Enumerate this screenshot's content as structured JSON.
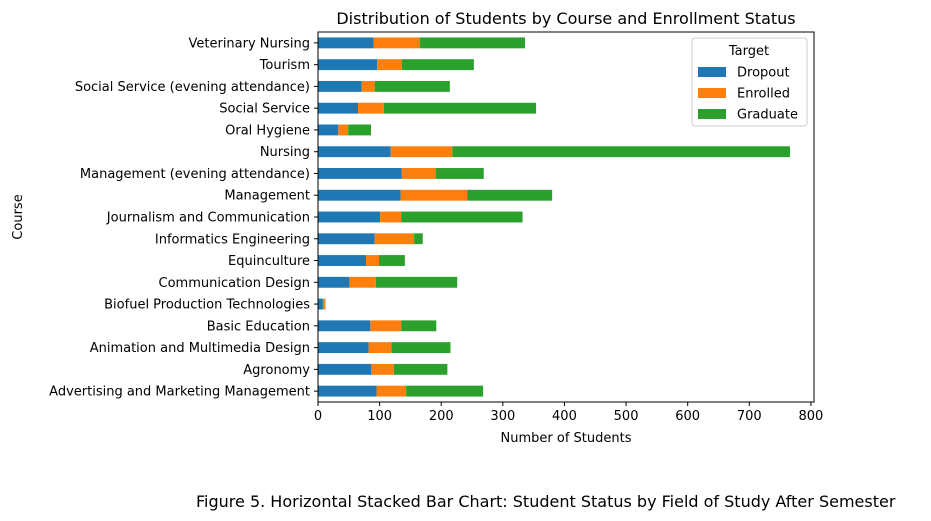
{
  "chart_data": {
    "type": "bar",
    "orientation": "horizontal",
    "stacked": true,
    "title": "Distribution of Students by Course and Enrollment Status",
    "xlabel": "Number of Students",
    "ylabel": "Course",
    "xlim": [
      0,
      805
    ],
    "xticks": [
      0,
      100,
      200,
      300,
      400,
      500,
      600,
      700,
      800
    ],
    "grid": false,
    "legend": {
      "title": "Target",
      "placement": "top-right"
    },
    "categories": [
      "Advertising and Marketing Management",
      "Agronomy",
      "Animation and Multimedia Design",
      "Basic Education",
      "Biofuel Production Technologies",
      "Communication Design",
      "Equinculture",
      "Informatics Engineering",
      "Journalism and Communication",
      "Management",
      "Management (evening attendance)",
      "Nursing",
      "Oral Hygiene",
      "Social Service",
      "Social Service (evening attendance)",
      "Tourism",
      "Veterinary Nursing"
    ],
    "series": [
      {
        "name": "Dropout",
        "color": "#1f77b4",
        "values": [
          95,
          86,
          82,
          85,
          8,
          51,
          78,
          92,
          101,
          134,
          136,
          118,
          33,
          65,
          71,
          96,
          90
        ]
      },
      {
        "name": "Enrolled",
        "color": "#ff7f0e",
        "values": [
          48,
          37,
          37,
          50,
          3,
          43,
          21,
          64,
          34,
          108,
          55,
          100,
          16,
          42,
          21,
          40,
          75
        ]
      },
      {
        "name": "Graduate",
        "color": "#2ca02c",
        "values": [
          125,
          87,
          96,
          57,
          1,
          132,
          42,
          14,
          197,
          138,
          78,
          548,
          37,
          247,
          122,
          117,
          171
        ]
      }
    ]
  },
  "caption": "Figure 5. Horizontal Stacked Bar Chart: Student Status by Field of Study After Semester"
}
